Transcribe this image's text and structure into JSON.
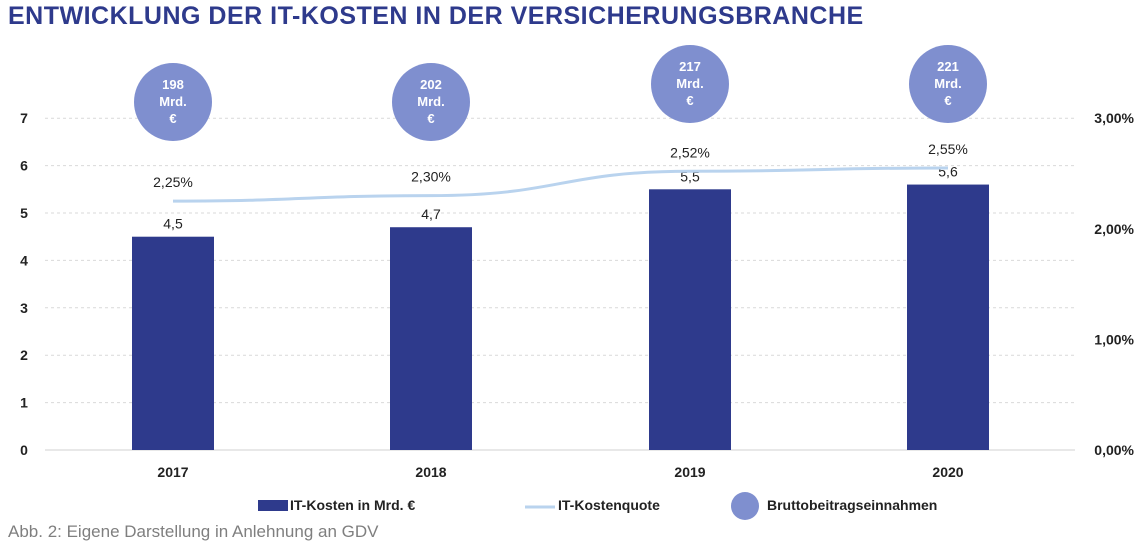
{
  "title": "ENTWICKLUNG DER IT-KOSTEN IN DER VERSICHERUNGSBRANCHE",
  "caption": "Abb. 2: Eigene Darstellung in Anlehnung an GDV",
  "colors": {
    "bar": "#2e3a8c",
    "line": "#b9d3ee",
    "bubble": "#7f8fcf",
    "title": "#2e3a8c",
    "grid": "#d9d9d9"
  },
  "chart_data": {
    "type": "bar",
    "title": "ENTWICKLUNG DER IT-KOSTEN IN DER VERSICHERUNGSBRANCHE",
    "categories": [
      "2017",
      "2018",
      "2019",
      "2020"
    ],
    "series": [
      {
        "name": "IT-Kosten in Mrd. €",
        "type": "bar",
        "axis": "left",
        "values": [
          4.5,
          4.7,
          5.5,
          5.6
        ],
        "labels": [
          "4,5",
          "4,7",
          "5,5",
          "5,6"
        ]
      },
      {
        "name": "IT-Kostenquote",
        "type": "line",
        "axis": "right",
        "values": [
          2.25,
          2.3,
          2.52,
          2.55
        ],
        "labels": [
          "2,25%",
          "2,30%",
          "2,52%",
          "2,55%"
        ]
      },
      {
        "name": "Bruttobeitragseinnahmen",
        "type": "bubble",
        "values": [
          198,
          202,
          217,
          221
        ],
        "labels": [
          [
            "198",
            "Mrd.",
            "€"
          ],
          [
            "202",
            "Mrd.",
            "€"
          ],
          [
            "217",
            "Mrd.",
            "€"
          ],
          [
            "221",
            "Mrd.",
            "€"
          ]
        ]
      }
    ],
    "y_left": {
      "ylim": [
        0,
        7
      ],
      "ticks": [
        "0",
        "1",
        "2",
        "3",
        "4",
        "5",
        "6",
        "7"
      ]
    },
    "y_right": {
      "ylim": [
        0,
        3.0
      ],
      "ticks": [
        "0,00%",
        "1,00%",
        "2,00%",
        "3,00%"
      ],
      "tick_values": [
        0,
        1,
        2,
        3
      ]
    },
    "grid": true,
    "legend_position": "bottom",
    "legend": [
      "IT-Kosten in Mrd. €",
      "IT-Kostenquote",
      "Bruttobeitragseinnahmen"
    ]
  }
}
